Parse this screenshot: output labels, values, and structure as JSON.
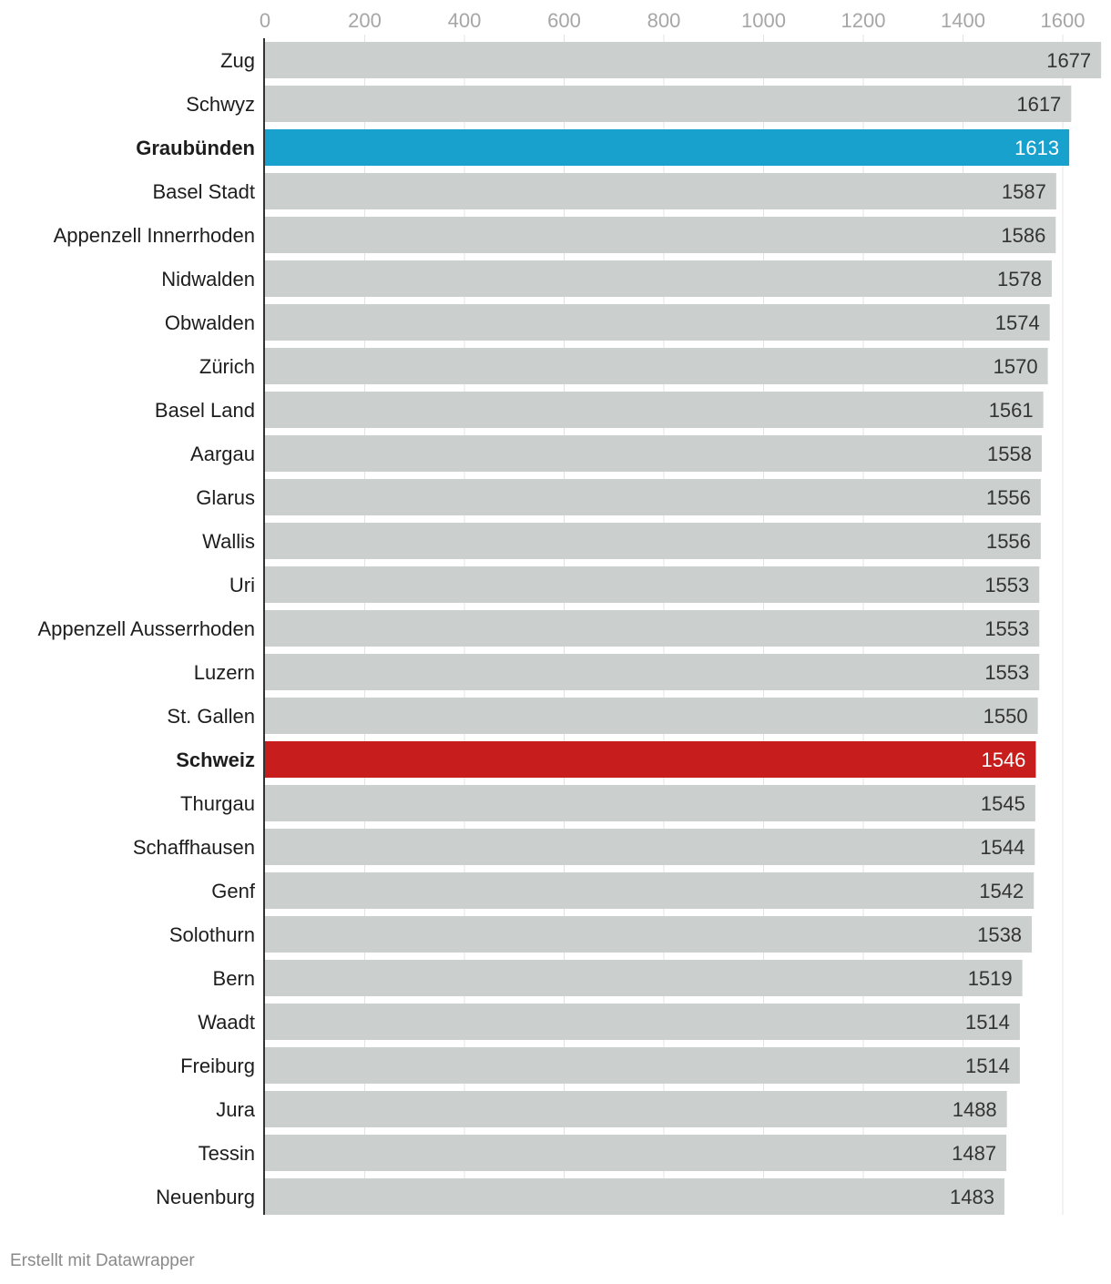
{
  "chart_data": {
    "type": "bar",
    "orientation": "horizontal",
    "title": "",
    "xlabel": "",
    "ylabel": "",
    "xlim": [
      0,
      1677
    ],
    "ticks": [
      "0",
      "200",
      "400",
      "600",
      "800",
      "1000",
      "1200",
      "1400",
      "1600"
    ],
    "tick_values": [
      0,
      200,
      400,
      600,
      800,
      1000,
      1200,
      1400,
      1600
    ],
    "grid": "vertical",
    "default_color": "#cbd0cf",
    "categories": [
      "Zug",
      "Schwyz",
      "Graubünden",
      "Basel Stadt",
      "Appenzell Innerrhoden",
      "Nidwalden",
      "Obwalden",
      "Zürich",
      "Basel Land",
      "Aargau",
      "Glarus",
      "Wallis",
      "Uri",
      "Appenzell Ausserrhoden",
      "Luzern",
      "St. Gallen",
      "Schweiz",
      "Thurgau",
      "Schaffhausen",
      "Genf",
      "Solothurn",
      "Bern",
      "Waadt",
      "Freiburg",
      "Jura",
      "Tessin",
      "Neuenburg"
    ],
    "values": [
      1677,
      1617,
      1613,
      1587,
      1586,
      1578,
      1574,
      1570,
      1561,
      1558,
      1556,
      1556,
      1553,
      1553,
      1553,
      1550,
      1546,
      1545,
      1544,
      1542,
      1538,
      1519,
      1514,
      1514,
      1488,
      1487,
      1483
    ],
    "highlights": [
      {
        "category": "Graubünden",
        "color": "#18a1cd",
        "bold": true
      },
      {
        "category": "Schweiz",
        "color": "#c71e1d",
        "bold": true
      }
    ]
  },
  "footer": {
    "credit": "Erstellt mit Datawrapper"
  }
}
